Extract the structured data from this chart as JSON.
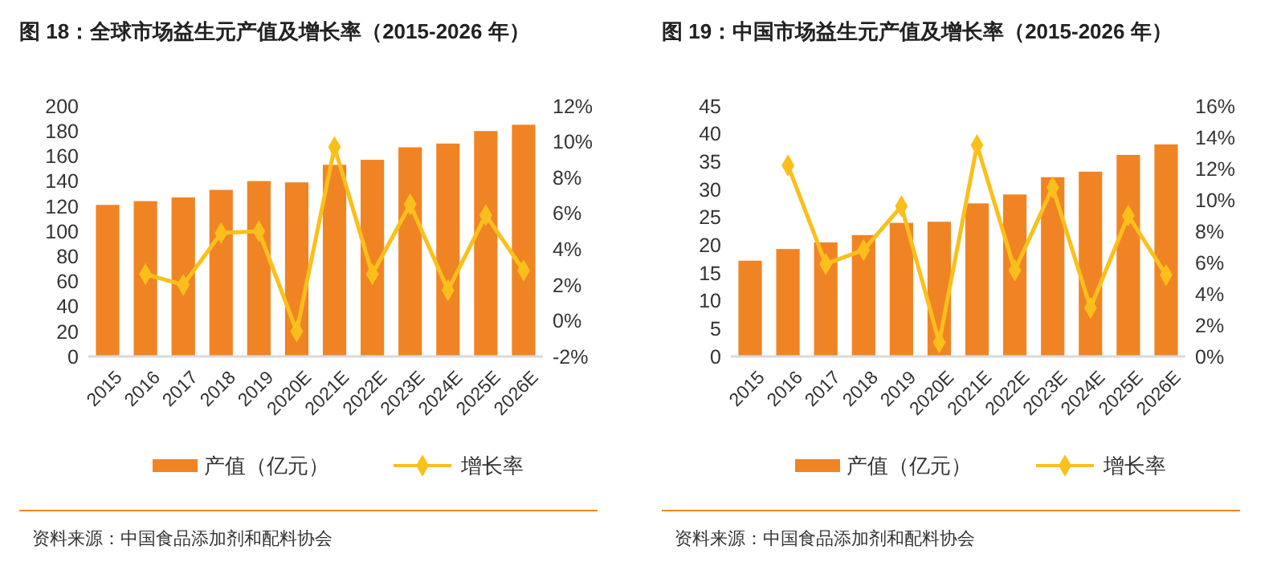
{
  "chart_data": [
    {
      "type": "bar",
      "title": "图 18：全球市场益生元产值及增长率（2015-2026 年）",
      "categories": [
        "2015",
        "2016",
        "2017",
        "2018",
        "2019",
        "2020E",
        "2021E",
        "2022E",
        "2023E",
        "2024E",
        "2025E",
        "2026E"
      ],
      "series": [
        {
          "name": "产值（亿元）",
          "color": "#f08424",
          "values": [
            121,
            124,
            127,
            133,
            140,
            139,
            153,
            157,
            167,
            170,
            180,
            185
          ]
        },
        {
          "name": "增长率",
          "type": "line",
          "axis": "y2",
          "color": "#fbbf1c",
          "values": [
            null,
            2.6,
            2.0,
            4.9,
            5.0,
            -0.6,
            9.7,
            2.6,
            6.5,
            1.7,
            5.9,
            2.8
          ]
        }
      ],
      "ylim": [
        0,
        200
      ],
      "yticks": [
        0,
        20,
        40,
        60,
        80,
        100,
        120,
        140,
        160,
        180,
        200
      ],
      "y2lim": [
        -2,
        12
      ],
      "y2ticks": [
        {
          "value": -2,
          "label": "-2%"
        },
        {
          "value": 0,
          "label": "0%"
        },
        {
          "value": 2,
          "label": "2%"
        },
        {
          "value": 4,
          "label": "4%"
        },
        {
          "value": 6,
          "label": "6%"
        },
        {
          "value": 8,
          "label": "8%"
        },
        {
          "value": 10,
          "label": "10%"
        },
        {
          "value": 12,
          "label": "12%"
        }
      ],
      "marker": "diamond",
      "legend": "bottom",
      "grid": false,
      "annotations": [
        "资料来源：中国食品添加剂和配料协会"
      ]
    },
    {
      "type": "bar",
      "title": "图 19：中国市场益生元产值及增长率（2015-2026 年）",
      "categories": [
        "2015",
        "2016",
        "2017",
        "2018",
        "2019",
        "2020E",
        "2021E",
        "2022E",
        "2023E",
        "2024E",
        "2025E",
        "2026E"
      ],
      "series": [
        {
          "name": "产值（亿元）",
          "color": "#f08424",
          "values": [
            17.2,
            19.3,
            20.5,
            21.8,
            24.0,
            24.2,
            27.5,
            29.1,
            32.2,
            33.2,
            36.2,
            38.1
          ]
        },
        {
          "name": "增长率",
          "type": "line",
          "axis": "y2",
          "color": "#fbbf1c",
          "values": [
            null,
            12.2,
            5.9,
            6.8,
            9.6,
            0.9,
            13.5,
            5.5,
            10.8,
            3.1,
            9.0,
            5.2
          ]
        }
      ],
      "ylim": [
        0,
        45
      ],
      "yticks": [
        0,
        5,
        10,
        15,
        20,
        25,
        30,
        35,
        40,
        45
      ],
      "y2lim": [
        0,
        16
      ],
      "y2ticks": [
        {
          "value": 0,
          "label": "0%"
        },
        {
          "value": 2,
          "label": "2%"
        },
        {
          "value": 4,
          "label": "4%"
        },
        {
          "value": 6,
          "label": "6%"
        },
        {
          "value": 8,
          "label": "8%"
        },
        {
          "value": 10,
          "label": "10%"
        },
        {
          "value": 12,
          "label": "12%"
        },
        {
          "value": 14,
          "label": "14%"
        },
        {
          "value": 16,
          "label": "16%"
        }
      ],
      "marker": "diamond",
      "legend": "bottom",
      "grid": false,
      "annotations": [
        "资料来源：中国食品添加剂和配料协会"
      ]
    }
  ]
}
